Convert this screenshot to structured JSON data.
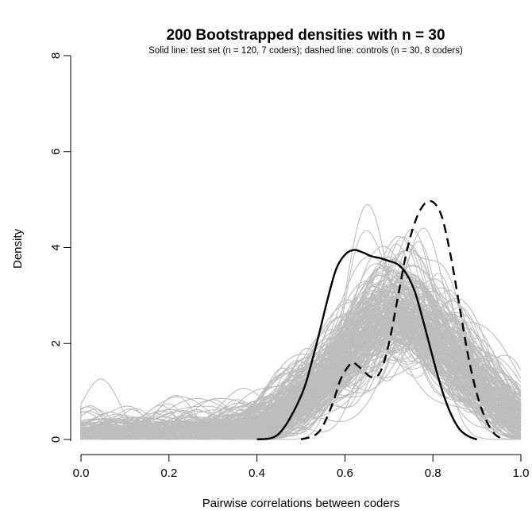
{
  "chart_data": {
    "type": "line",
    "title": "200 Bootstrapped densities with n = 30",
    "subtitle": "Solid line: test set (n = 120, 7 coders); dashed line: controls (n = 30, 8 coders)",
    "xlabel": "Pairwise correlations between coders",
    "ylabel": "Density",
    "xlim": [
      0.0,
      1.0
    ],
    "ylim": [
      0,
      8
    ],
    "x_ticks": [
      "0.0",
      "0.2",
      "0.4",
      "0.6",
      "0.8",
      "1.0"
    ],
    "y_ticks": [
      "0",
      "2",
      "4",
      "6",
      "8"
    ],
    "grid": false,
    "legend": "none",
    "bootstrap_count": 200,
    "bootstrap_color": "#bdbdbd",
    "series": [
      {
        "style": "solid",
        "color": "#000000",
        "x": [
          0.4,
          0.45,
          0.5,
          0.53,
          0.56,
          0.58,
          0.6,
          0.62,
          0.64,
          0.66,
          0.68,
          0.7,
          0.72,
          0.74,
          0.76,
          0.78,
          0.8,
          0.82,
          0.84,
          0.86,
          0.88,
          0.9
        ],
        "y": [
          0.0,
          0.12,
          0.9,
          1.8,
          2.9,
          3.55,
          3.85,
          3.95,
          3.9,
          3.82,
          3.78,
          3.72,
          3.65,
          3.45,
          3.05,
          2.4,
          1.7,
          1.05,
          0.55,
          0.22,
          0.07,
          0.0
        ]
      },
      {
        "style": "dashed",
        "color": "#000000",
        "x": [
          0.5,
          0.54,
          0.57,
          0.59,
          0.61,
          0.62,
          0.64,
          0.66,
          0.68,
          0.7,
          0.72,
          0.74,
          0.76,
          0.78,
          0.8,
          0.82,
          0.84,
          0.86,
          0.88,
          0.9,
          0.92,
          0.94,
          0.96
        ],
        "y": [
          0.0,
          0.15,
          0.7,
          1.25,
          1.55,
          1.6,
          1.45,
          1.3,
          1.4,
          2.0,
          2.95,
          3.9,
          4.55,
          4.9,
          4.95,
          4.65,
          3.85,
          2.8,
          1.75,
          0.95,
          0.42,
          0.12,
          0.0
        ]
      }
    ]
  }
}
